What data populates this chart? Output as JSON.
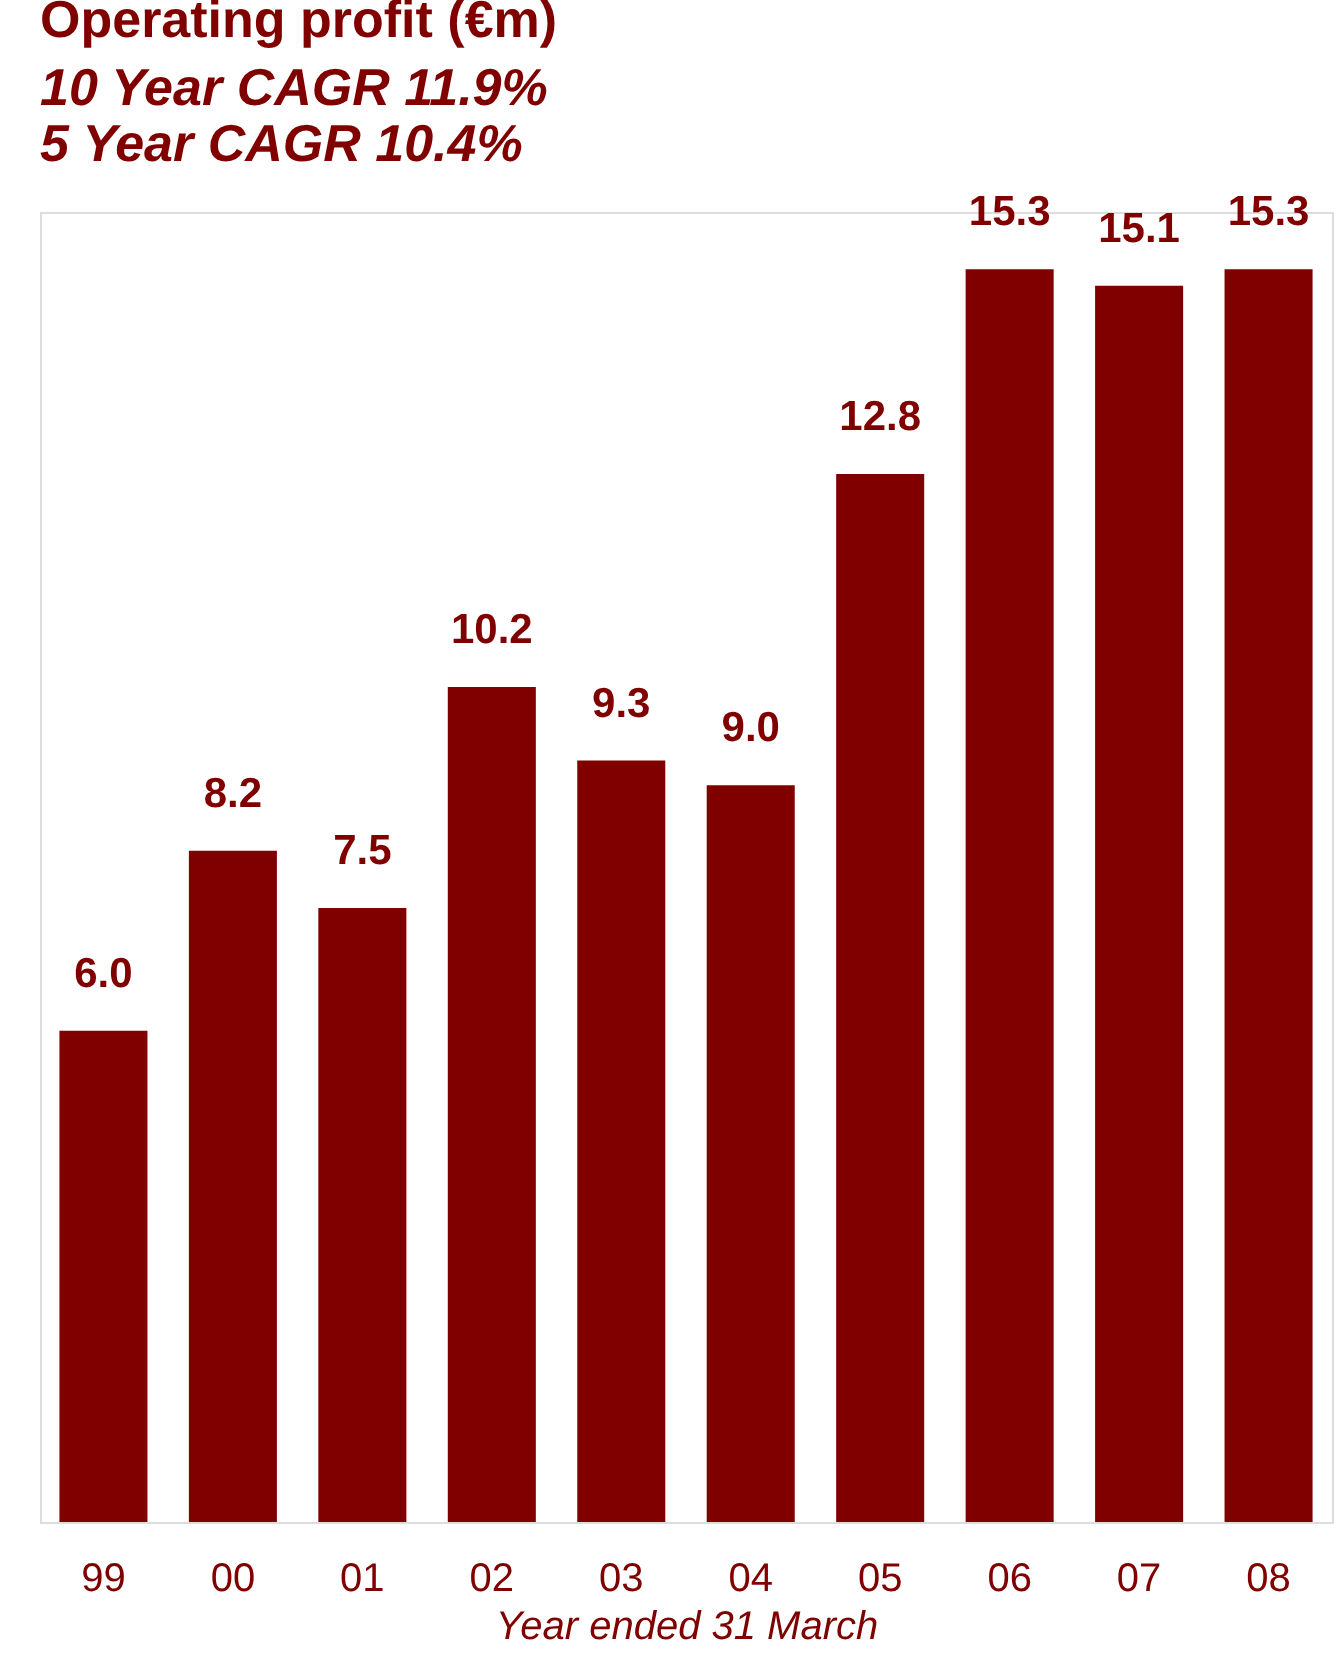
{
  "chart_data": {
    "type": "bar",
    "title": "Operating profit (€m)",
    "subtitle": [
      "10 Year CAGR 11.9%",
      "5 Year CAGR 10.4%"
    ],
    "xlabel": "Year  ended 31 March",
    "categories": [
      "99",
      "00",
      "01",
      "02",
      "03",
      "04",
      "05",
      "06",
      "07",
      "08"
    ],
    "values": [
      6.0,
      8.2,
      7.5,
      10.2,
      9.3,
      9.0,
      12.8,
      15.3,
      15.1,
      15.3
    ],
    "value_labels": [
      "6.0",
      "8.2",
      "7.5",
      "10.2",
      "9.3",
      "9.0",
      "12.8",
      "15.3",
      "15.1",
      "15.3"
    ],
    "color": "#800000",
    "tick_labels": "x"
  }
}
